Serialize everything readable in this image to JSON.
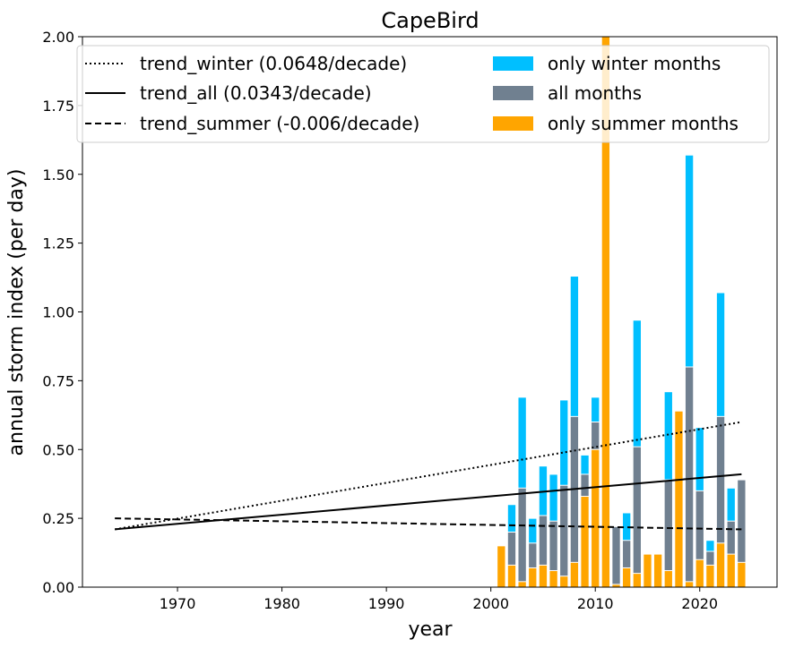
{
  "chart_data": {
    "type": "bar",
    "title": "CapeBird",
    "xlabel": "year",
    "ylabel": "annual storm index (per day)",
    "xlim": [
      1960.9,
      2027.4
    ],
    "ylim": [
      0,
      2.0
    ],
    "xticks": [
      1970,
      1980,
      1990,
      2000,
      2010,
      2020
    ],
    "yticks": [
      0.0,
      0.25,
      0.5,
      0.75,
      1.0,
      1.25,
      1.5,
      1.75,
      2.0
    ],
    "ytick_labels": [
      "0.00",
      "0.25",
      "0.50",
      "0.75",
      "1.00",
      "1.25",
      "1.50",
      "1.75",
      "2.00"
    ],
    "grid": false,
    "legend_position": "top",
    "colors": {
      "winter": "#00bfff",
      "all": "#708090",
      "summer": "#ffa500",
      "trend": "#000000"
    },
    "years": [
      2001,
      2002,
      2003,
      2004,
      2005,
      2006,
      2007,
      2008,
      2009,
      2010,
      2011,
      2012,
      2013,
      2014,
      2015,
      2016,
      2017,
      2018,
      2019,
      2020,
      2021,
      2022,
      2023,
      2024
    ],
    "series": [
      {
        "name": "only winter months",
        "key": "winter",
        "values": [
          0.0,
          0.3,
          0.69,
          0.25,
          0.44,
          0.41,
          0.68,
          1.13,
          0.48,
          0.69,
          0.08,
          0.0,
          0.27,
          0.97,
          0.09,
          0.08,
          0.71,
          0.14,
          1.57,
          0.58,
          0.17,
          1.07,
          0.36,
          0.0
        ]
      },
      {
        "name": "all months",
        "key": "all",
        "values": [
          0.0,
          0.2,
          0.36,
          0.16,
          0.26,
          0.24,
          0.37,
          0.62,
          0.41,
          0.6,
          1.0,
          0.22,
          0.17,
          0.51,
          0.1,
          0.1,
          0.39,
          0.42,
          0.8,
          0.35,
          0.13,
          0.62,
          0.24,
          0.39
        ]
      },
      {
        "name": "only summer months",
        "key": "summer",
        "values": [
          0.15,
          0.08,
          0.02,
          0.07,
          0.08,
          0.06,
          0.04,
          0.09,
          0.33,
          0.5,
          2.0,
          0.01,
          0.07,
          0.05,
          0.12,
          0.12,
          0.06,
          0.64,
          0.02,
          0.1,
          0.08,
          0.16,
          0.12,
          0.09
        ]
      }
    ],
    "trends": [
      {
        "name": "trend_winter (0.0648/decade)",
        "key": "winter",
        "style": "dotted",
        "x": [
          1964,
          2024
        ],
        "y": [
          0.21,
          0.6
        ]
      },
      {
        "name": "trend_all (0.0343/decade)",
        "key": "all",
        "style": "solid",
        "x": [
          1964,
          2024
        ],
        "y": [
          0.21,
          0.41
        ]
      },
      {
        "name": "trend_summer (-0.006/decade)",
        "key": "summer",
        "style": "dashed",
        "x": [
          1964,
          2024
        ],
        "y": [
          0.25,
          0.21
        ]
      }
    ]
  }
}
